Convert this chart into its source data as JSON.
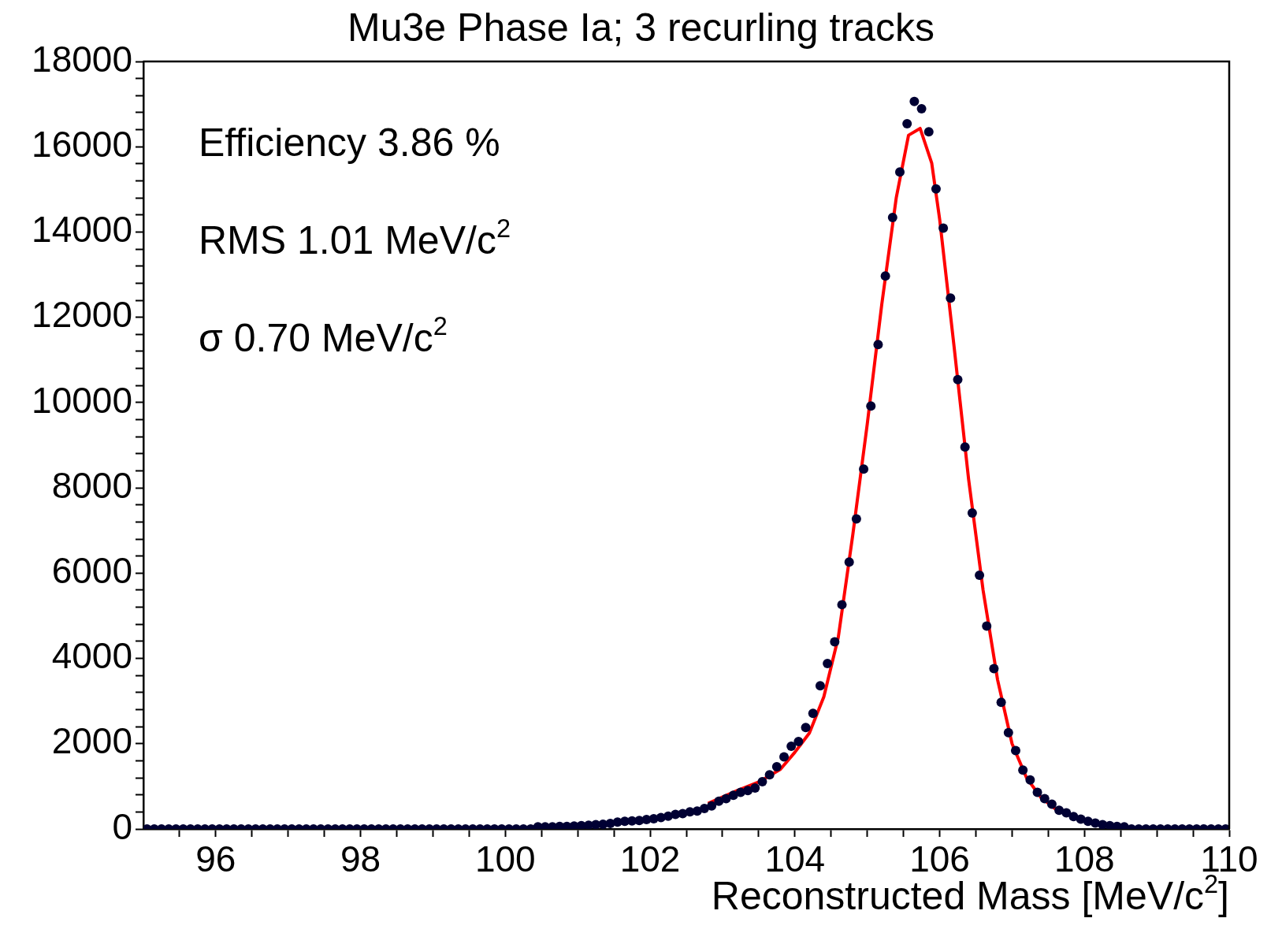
{
  "chart_data": {
    "type": "scatter",
    "title": "Mu3e Phase Ia; 3 recurling tracks",
    "xlabel": "Reconstructed Mass [MeV/c$^{2}$]",
    "annotations": [
      "Efficiency 3.86 %",
      "RMS 1.01 MeV/c$^{2}$",
      "σ 0.70 MeV/c$^{2}$"
    ],
    "xlim": [
      95,
      110
    ],
    "xticks": [
      {
        "value": 95.5,
        "label": null
      },
      96,
      {
        "value": 96.5,
        "label": null
      },
      {
        "value": 97,
        "label": null
      },
      {
        "value": 97.5,
        "label": null
      },
      98,
      {
        "value": 98.5,
        "label": null
      },
      {
        "value": 99,
        "label": null
      },
      {
        "value": 99.5,
        "label": null
      },
      100,
      {
        "value": 100.5,
        "label": null
      },
      {
        "value": 101,
        "label": null
      },
      {
        "value": 101.5,
        "label": null
      },
      102,
      {
        "value": 102.5,
        "label": null
      },
      {
        "value": 103,
        "label": null
      },
      {
        "value": 103.5,
        "label": null
      },
      104,
      {
        "value": 104.5,
        "label": null
      },
      {
        "value": 105,
        "label": null
      },
      {
        "value": 105.5,
        "label": null
      },
      106,
      {
        "value": 106.5,
        "label": null
      },
      {
        "value": 107,
        "label": null
      },
      {
        "value": 107.5,
        "label": null
      },
      108,
      {
        "value": 108.5,
        "label": null
      },
      {
        "value": 109,
        "label": null
      },
      {
        "value": 109.5,
        "label": null
      },
      110
    ],
    "ylim": [
      0,
      18000
    ],
    "yticks": [
      0,
      {
        "value": 400,
        "label": null
      },
      {
        "value": 800,
        "label": null
      },
      {
        "value": 1200,
        "label": null
      },
      {
        "value": 1600,
        "label": null
      },
      2000,
      {
        "value": 2400,
        "label": null
      },
      {
        "value": 2800,
        "label": null
      },
      {
        "value": 3200,
        "label": null
      },
      {
        "value": 3600,
        "label": null
      },
      4000,
      {
        "value": 4400,
        "label": null
      },
      {
        "value": 4800,
        "label": null
      },
      {
        "value": 5200,
        "label": null
      },
      {
        "value": 5600,
        "label": null
      },
      6000,
      {
        "value": 6400,
        "label": null
      },
      {
        "value": 6800,
        "label": null
      },
      {
        "value": 7200,
        "label": null
      },
      {
        "value": 7600,
        "label": null
      },
      8000,
      {
        "value": 8400,
        "label": null
      },
      {
        "value": 8800,
        "label": null
      },
      {
        "value": 9200,
        "label": null
      },
      {
        "value": 9600,
        "label": null
      },
      10000,
      {
        "value": 10400,
        "label": null
      },
      {
        "value": 10800,
        "label": null
      },
      {
        "value": 11200,
        "label": null
      },
      {
        "value": 11600,
        "label": null
      },
      12000,
      {
        "value": 12400,
        "label": null
      },
      {
        "value": 12800,
        "label": null
      },
      {
        "value": 13200,
        "label": null
      },
      {
        "value": 13600,
        "label": null
      },
      14000,
      {
        "value": 14400,
        "label": null
      },
      {
        "value": 14800,
        "label": null
      },
      {
        "value": 15200,
        "label": null
      },
      {
        "value": 15600,
        "label": null
      },
      16000,
      {
        "value": 16400,
        "label": null
      },
      {
        "value": 16800,
        "label": null
      },
      {
        "value": 17200,
        "label": null
      },
      {
        "value": 17600,
        "label": null
      },
      18000
    ],
    "grid": false,
    "legend": false,
    "marker": "circle",
    "series": [
      {
        "color": "#000033",
        "x": [
          95.05,
          95.15,
          95.25,
          95.35,
          95.45,
          95.55,
          95.65,
          95.75,
          95.85,
          95.95,
          96.05,
          96.15,
          96.25,
          96.35,
          96.45,
          96.55,
          96.65,
          96.75,
          96.85,
          96.95,
          97.05,
          97.15,
          97.25,
          97.35,
          97.45,
          97.55,
          97.65,
          97.75,
          97.85,
          97.95,
          98.05,
          98.15,
          98.25,
          98.35,
          98.45,
          98.55,
          98.65,
          98.75,
          98.85,
          98.95,
          99.05,
          99.15,
          99.25,
          99.35,
          99.45,
          99.55,
          99.65,
          99.75,
          99.85,
          99.95,
          100.05,
          100.15,
          100.25,
          100.35,
          100.45,
          100.55,
          100.65,
          100.75,
          100.85,
          100.95,
          101.05,
          101.15,
          101.25,
          101.35,
          101.45,
          101.55,
          101.65,
          101.75,
          101.85,
          101.95,
          102.05,
          102.15,
          102.25,
          102.35,
          102.45,
          102.55,
          102.65,
          102.75,
          102.85,
          102.95,
          103.05,
          103.15,
          103.25,
          103.35,
          103.45,
          103.55,
          103.65,
          103.75,
          103.85,
          103.95,
          104.05,
          104.15,
          104.25,
          104.35,
          104.45,
          104.55,
          104.65,
          104.75,
          104.85,
          104.95,
          105.05,
          105.15,
          105.25,
          105.35,
          105.45,
          105.55,
          105.65,
          105.75,
          105.85,
          105.95,
          106.05,
          106.15,
          106.25,
          106.35,
          106.45,
          106.55,
          106.65,
          106.75,
          106.85,
          106.95,
          107.05,
          107.15,
          107.25,
          107.35,
          107.45,
          107.55,
          107.65,
          107.75,
          107.85,
          107.95,
          108.05,
          108.15,
          108.25,
          108.35,
          108.45,
          108.55,
          108.65,
          108.75,
          108.85,
          108.95,
          109.05,
          109.15,
          109.25,
          109.35,
          109.45,
          109.55,
          109.65,
          109.75,
          109.85,
          109.95
        ],
        "values": [
          0,
          0,
          0,
          0,
          0,
          0,
          0,
          0,
          0,
          0,
          0,
          0,
          0,
          0,
          0,
          0,
          0,
          0,
          0,
          0,
          0,
          0,
          0,
          0,
          0,
          0,
          0,
          0,
          0,
          0,
          0,
          0,
          0,
          0,
          0,
          0,
          0,
          0,
          0,
          0,
          0,
          0,
          0,
          0,
          0,
          0,
          0,
          0,
          0,
          0,
          0,
          0,
          0,
          0,
          50,
          50,
          50,
          60,
          60,
          70,
          80,
          90,
          100,
          110,
          130,
          160,
          180,
          190,
          200,
          220,
          240,
          270,
          300,
          340,
          360,
          400,
          420,
          480,
          540,
          650,
          710,
          790,
          860,
          900,
          960,
          1110,
          1270,
          1460,
          1690,
          1940,
          2050,
          2380,
          2710,
          3360,
          3880,
          4390,
          5260,
          6260,
          7270,
          8440,
          9920,
          11360,
          12970,
          14340,
          15410,
          16540,
          17060,
          16890,
          16350,
          15010,
          14090,
          12450,
          10540,
          8960,
          7410,
          5950,
          4760,
          3760,
          2970,
          2260,
          1840,
          1380,
          1150,
          860,
          710,
          580,
          440,
          380,
          290,
          230,
          180,
          140,
          100,
          80,
          60,
          50,
          0,
          0,
          0,
          0,
          0,
          0,
          0,
          0,
          0,
          0,
          0,
          0,
          0,
          0
        ]
      },
      {
        "type": "line",
        "color": "#ff0000",
        "marker": "none",
        "x": [
          102.8,
          103.2,
          103.5,
          103.8,
          104,
          104.2,
          104.4,
          104.6,
          104.8,
          105,
          105.2,
          105.4,
          105.57,
          105.73,
          105.89,
          106,
          106.2,
          106.4,
          106.6,
          106.8,
          107,
          107.2,
          107.4,
          107.6
        ],
        "values": [
          600,
          900,
          1100,
          1400,
          1800,
          2250,
          3100,
          4500,
          6900,
          9500,
          12300,
          14800,
          16270,
          16430,
          15620,
          14300,
          11300,
          8200,
          5600,
          3500,
          2000,
          1200,
          740,
          470
        ]
      }
    ]
  }
}
